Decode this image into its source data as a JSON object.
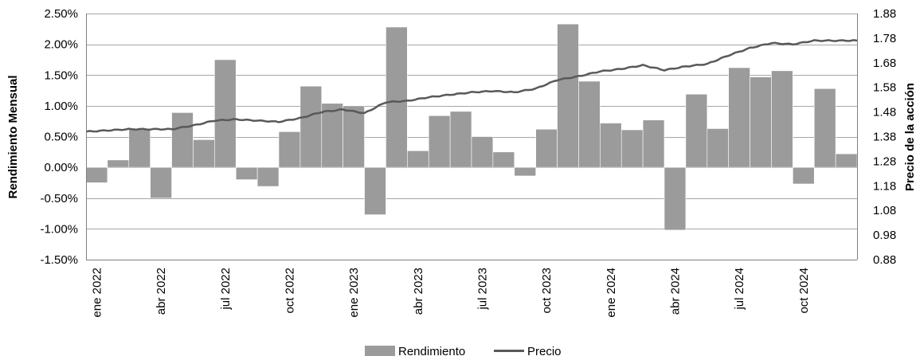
{
  "chart_data": {
    "type": "bar+line",
    "ylabel_left": "Rendimiento Mensual",
    "ylabel_right": "Precio de la acción",
    "y_left_ticks": [
      "2.50%",
      "2.00%",
      "1.50%",
      "1.00%",
      "0.50%",
      "0.00%",
      "-0.50%",
      "-1.00%",
      "-1.50%"
    ],
    "y_right_ticks": [
      "1.88",
      "1.78",
      "1.68",
      "1.58",
      "1.48",
      "1.38",
      "1.28",
      "1.18",
      "1.08",
      "0.98",
      "0.88"
    ],
    "ylim_left": [
      -1.5,
      2.5
    ],
    "ylim_right": [
      0.88,
      1.88
    ],
    "x_labels": [
      {
        "index": 0,
        "text": "ene 2022"
      },
      {
        "index": 3,
        "text": "abr 2022"
      },
      {
        "index": 6,
        "text": "jul 2022"
      },
      {
        "index": 9,
        "text": "oct 2022"
      },
      {
        "index": 12,
        "text": "ene 2023"
      },
      {
        "index": 15,
        "text": "abr 2023"
      },
      {
        "index": 18,
        "text": "jul 2023"
      },
      {
        "index": 21,
        "text": "oct 2023"
      },
      {
        "index": 24,
        "text": "ene 2024"
      },
      {
        "index": 27,
        "text": "abr 2024"
      },
      {
        "index": 30,
        "text": "jul 2024"
      },
      {
        "index": 33,
        "text": "oct 2024"
      }
    ],
    "series": [
      {
        "name": "Rendimiento",
        "kind": "bar",
        "axis": "left",
        "unit": "%",
        "color": "#9b9b9b",
        "values": [
          -0.25,
          0.12,
          0.62,
          -0.5,
          0.89,
          0.45,
          1.75,
          -0.2,
          -0.31,
          0.58,
          1.32,
          1.04,
          1.0,
          -0.77,
          2.28,
          0.27,
          0.84,
          0.91,
          0.5,
          0.25,
          -0.14,
          0.62,
          2.33,
          1.4,
          0.72,
          0.61,
          0.77,
          -1.02,
          1.19,
          0.63,
          1.62,
          1.47,
          1.57,
          -0.27,
          1.28,
          0.22
        ]
      },
      {
        "name": "Precio",
        "kind": "line",
        "axis": "right",
        "color": "#595959",
        "values": [
          1.4,
          1.405,
          1.41,
          1.41,
          1.41,
          1.425,
          1.445,
          1.45,
          1.445,
          1.44,
          1.455,
          1.48,
          1.49,
          1.475,
          1.52,
          1.525,
          1.54,
          1.55,
          1.56,
          1.565,
          1.56,
          1.575,
          1.61,
          1.625,
          1.645,
          1.655,
          1.67,
          1.65,
          1.665,
          1.675,
          1.71,
          1.74,
          1.76,
          1.755,
          1.77,
          1.77
        ]
      }
    ],
    "legend_position": "bottom-center",
    "grid": "horizontal"
  }
}
